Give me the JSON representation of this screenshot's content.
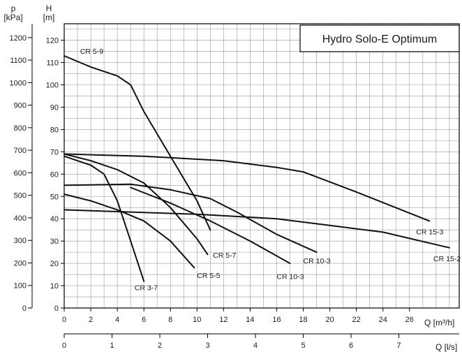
{
  "chart_data": {
    "type": "line",
    "title": "Hydro Solo-E Optimum",
    "axes": {
      "x": {
        "label": "Q [m³/h]",
        "range": [
          0,
          29
        ],
        "ticks": [
          "0",
          "2",
          "4",
          "6",
          "8",
          "10",
          "12",
          "14",
          "16",
          "18",
          "20",
          "22",
          "24",
          "26"
        ]
      },
      "x2": {
        "label": "Q [l/s]",
        "ticks": [
          "0",
          "1",
          "2",
          "3",
          "4",
          "5",
          "6",
          "7"
        ]
      },
      "y": {
        "label_top": "H",
        "label_unit": "[m]",
        "range": [
          0,
          125
        ],
        "ticks": [
          "0",
          "10",
          "20",
          "30",
          "40",
          "50",
          "60",
          "70",
          "80",
          "90",
          "100",
          "110",
          "120"
        ]
      },
      "y2": {
        "label_top": "p",
        "label_unit": "[kPa]",
        "ticks": [
          "0",
          "100",
          "200",
          "300",
          "400",
          "500",
          "600",
          "700",
          "800",
          "900",
          "1000",
          "1100",
          "1200"
        ]
      }
    },
    "grid": true,
    "series": [
      {
        "name": "CR 5-9",
        "points": [
          [
            0,
            113
          ],
          [
            2,
            108
          ],
          [
            4,
            104
          ],
          [
            5,
            100
          ],
          [
            6,
            88
          ],
          [
            8,
            68
          ],
          [
            10,
            48
          ],
          [
            11,
            35
          ]
        ]
      },
      {
        "name": "CR 5-7",
        "points": [
          [
            0,
            69
          ],
          [
            2,
            66
          ],
          [
            4,
            62
          ],
          [
            6,
            56
          ],
          [
            8,
            45
          ],
          [
            10,
            31
          ],
          [
            10.8,
            24
          ]
        ]
      },
      {
        "name": "CR 5-5",
        "points": [
          [
            0,
            51
          ],
          [
            2,
            48
          ],
          [
            4,
            44
          ],
          [
            6,
            39
          ],
          [
            8,
            30
          ],
          [
            9.8,
            18
          ]
        ]
      },
      {
        "name": "CR 3-7",
        "points": [
          [
            0,
            68
          ],
          [
            2,
            64
          ],
          [
            3,
            60
          ],
          [
            4,
            48
          ],
          [
            5,
            30
          ],
          [
            6,
            12
          ]
        ]
      },
      {
        "name": "CR 10-3",
        "points": [
          [
            0,
            55
          ],
          [
            5,
            55.5
          ],
          [
            8,
            53
          ],
          [
            11,
            49
          ],
          [
            13,
            43
          ],
          [
            16,
            33
          ],
          [
            19,
            25
          ]
        ]
      },
      {
        "name": "CR 10-3",
        "points": [
          [
            5,
            54
          ],
          [
            8,
            47
          ],
          [
            11,
            39
          ],
          [
            14,
            30
          ],
          [
            17,
            20
          ]
        ]
      },
      {
        "name": "CR 15-3",
        "points": [
          [
            0,
            69
          ],
          [
            6,
            68
          ],
          [
            12,
            66
          ],
          [
            16,
            63
          ],
          [
            18,
            61
          ],
          [
            22,
            52
          ],
          [
            27.5,
            39
          ]
        ]
      },
      {
        "name": "CR 15-2",
        "points": [
          [
            0,
            44
          ],
          [
            10,
            42
          ],
          [
            16,
            40
          ],
          [
            20,
            37
          ],
          [
            24,
            34
          ],
          [
            29,
            27
          ]
        ]
      }
    ],
    "labels": [
      {
        "text": "CR 5-9",
        "x": 1.2,
        "y": 114
      },
      {
        "text": "CR 5-7",
        "x": 11.2,
        "y": 22.5
      },
      {
        "text": "CR 5-5",
        "x": 10,
        "y": 13.5
      },
      {
        "text": "CR 3-7",
        "x": 5.3,
        "y": 8
      },
      {
        "text": "CR 10-3",
        "x": 18,
        "y": 20
      },
      {
        "text": "CR 10-3",
        "x": 16,
        "y": 13
      },
      {
        "text": "CR 15-3",
        "x": 26.5,
        "y": 33
      },
      {
        "text": "CR 15-2",
        "x": 27.8,
        "y": 21
      }
    ]
  }
}
